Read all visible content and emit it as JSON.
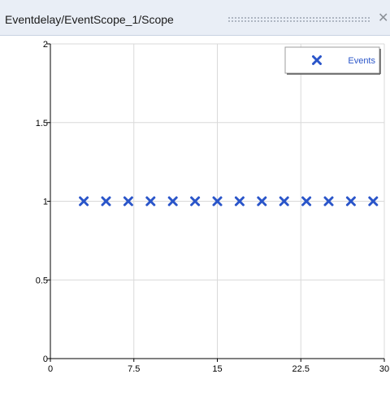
{
  "window": {
    "title": "Eventdelay/EventScope_1/Scope",
    "close_icon": "close-icon"
  },
  "chart_data": {
    "type": "scatter",
    "marker": "x",
    "marker_color": "#2a55c9",
    "xlim": [
      0,
      30
    ],
    "ylim": [
      0,
      2
    ],
    "xticks": [
      0,
      7.5,
      15,
      22.5,
      30
    ],
    "xtick_labels": [
      "0",
      "7.5",
      "15",
      "22.5",
      "30"
    ],
    "yticks": [
      0,
      0.5,
      1,
      1.5,
      2
    ],
    "ytick_labels": [
      "0",
      "0.5",
      "1",
      "1.5",
      "2"
    ],
    "grid": true,
    "legend_position": "top-right",
    "series": [
      {
        "name": "Events",
        "x": [
          3,
          5,
          7,
          9,
          11,
          13,
          15,
          17,
          19,
          21,
          23,
          25,
          27,
          29
        ],
        "y": [
          1,
          1,
          1,
          1,
          1,
          1,
          1,
          1,
          1,
          1,
          1,
          1,
          1,
          1
        ]
      }
    ]
  }
}
